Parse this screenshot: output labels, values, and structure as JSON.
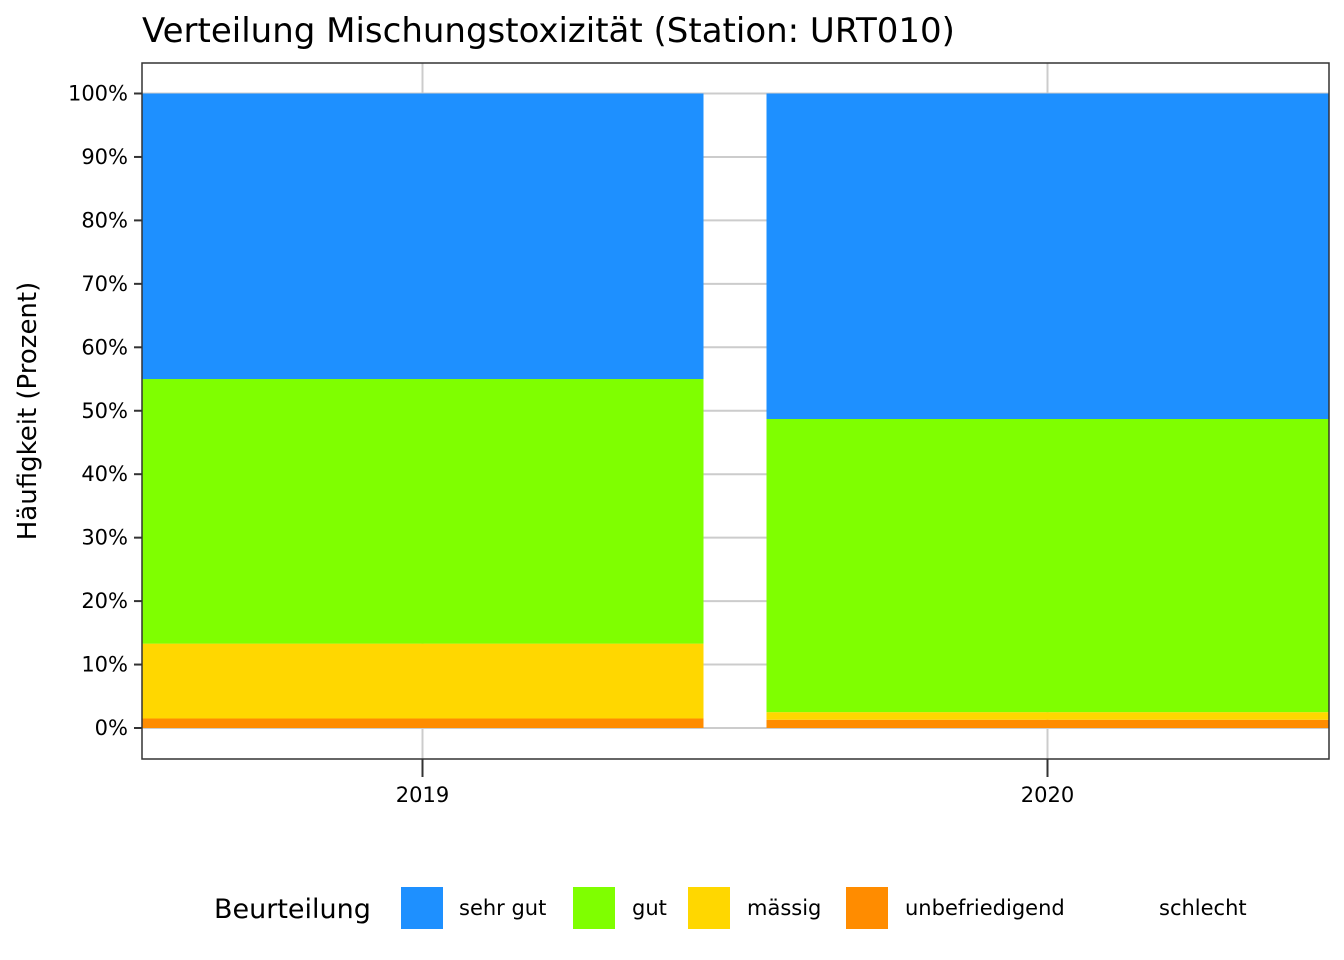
{
  "chart_data": {
    "type": "bar",
    "stacked": true,
    "title": "Verteilung Mischungstoxizität (Station: URT010)",
    "xlabel": "",
    "ylabel": "Häufigkeit (Prozent)",
    "categories": [
      "2019",
      "2020"
    ],
    "ylim": [
      0,
      100
    ],
    "yticks": [
      "0%",
      "10%",
      "20%",
      "30%",
      "40%",
      "50%",
      "60%",
      "70%",
      "80%",
      "90%",
      "100%"
    ],
    "legend_title": "Beurteilung",
    "legend_position": "bottom",
    "grid": true,
    "series": [
      {
        "name": "schlecht",
        "color": "#ff0000",
        "values": [
          0,
          0
        ]
      },
      {
        "name": "unbefriedigend",
        "color": "#ff8c00",
        "values": [
          1.5,
          1.3
        ]
      },
      {
        "name": "mässig",
        "color": "#ffd700",
        "values": [
          11.8,
          1.2
        ]
      },
      {
        "name": "gut",
        "color": "#7fff00",
        "values": [
          41.7,
          46.2
        ]
      },
      {
        "name": "sehr gut",
        "color": "#1e90ff",
        "values": [
          45.0,
          51.3
        ]
      }
    ],
    "legend": [
      {
        "label": "sehr gut",
        "color": "#1e90ff",
        "swatch": true
      },
      {
        "label": "gut",
        "color": "#7fff00",
        "swatch": true
      },
      {
        "label": "mässig",
        "color": "#ffd700",
        "swatch": true
      },
      {
        "label": "unbefriedigend",
        "color": "#ff8c00",
        "swatch": true
      },
      {
        "label": "schlecht",
        "color": "#ff0000",
        "swatch": false
      }
    ]
  }
}
